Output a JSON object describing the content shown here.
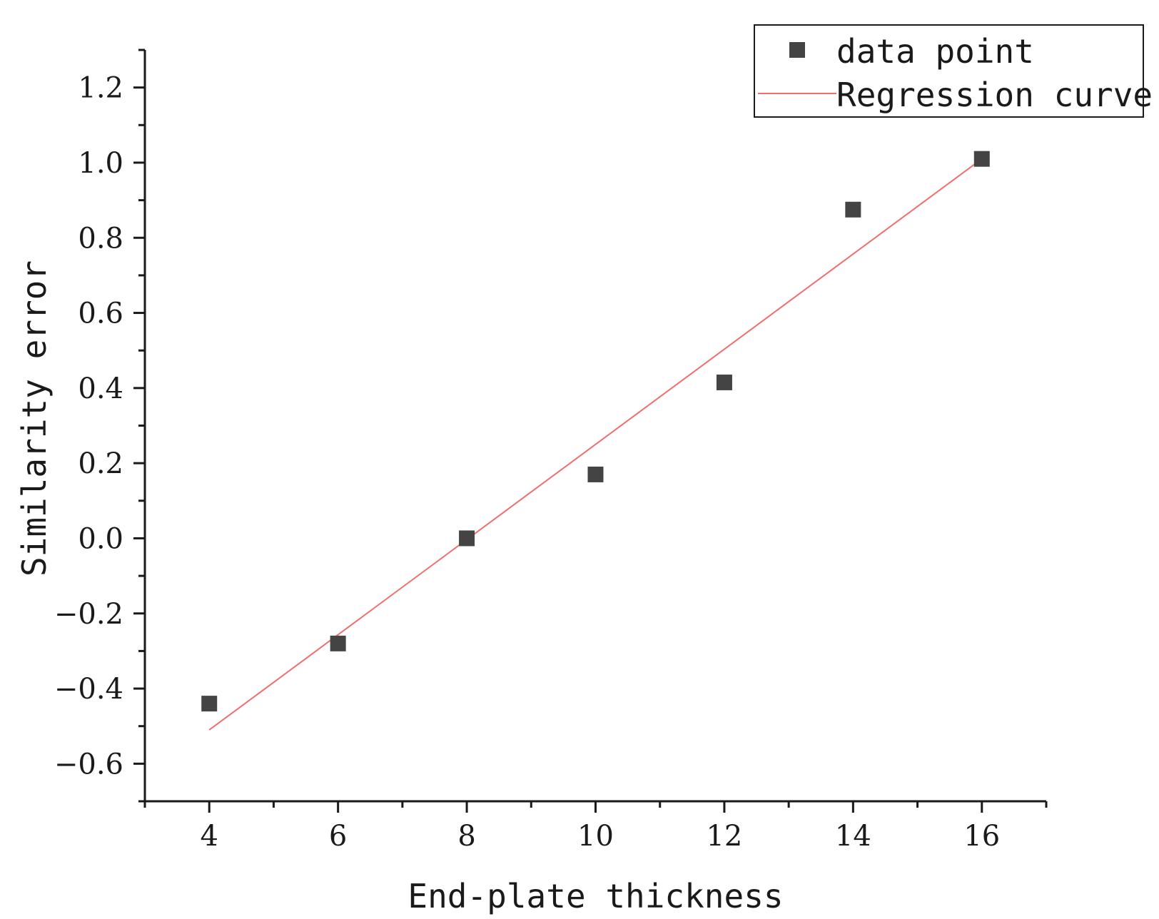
{
  "chart_data": {
    "type": "scatter",
    "title": "",
    "xlabel": "End-plate thickness",
    "ylabel": "Similarity error",
    "xlim": [
      3,
      17
    ],
    "ylim": [
      -0.7,
      1.3
    ],
    "x_ticks": [
      4,
      6,
      8,
      10,
      12,
      14,
      16
    ],
    "x_tick_labels": [
      "4",
      "6",
      "8",
      "10",
      "12",
      "14",
      "16"
    ],
    "y_ticks": [
      -0.6,
      -0.4,
      -0.2,
      0.0,
      0.2,
      0.4,
      0.6,
      0.8,
      1.0,
      1.2
    ],
    "y_tick_labels": [
      "−0.6",
      "−0.4",
      "−0.2",
      "0.0",
      "0.2",
      "0.4",
      "0.6",
      "0.8",
      "1.0",
      "1.2"
    ],
    "grid": false,
    "legend_position": "top-right",
    "series": [
      {
        "name": "data point",
        "kind": "scatter",
        "marker": "square",
        "color": "#444444",
        "x": [
          4,
          6,
          8,
          10,
          12,
          14,
          16
        ],
        "y": [
          -0.44,
          -0.28,
          0.0,
          0.17,
          0.415,
          0.875,
          1.01
        ]
      },
      {
        "name": "Regression curve",
        "kind": "line",
        "color": "#f26d6d",
        "x": [
          4,
          16
        ],
        "y": [
          -0.51,
          1.01
        ]
      }
    ]
  }
}
